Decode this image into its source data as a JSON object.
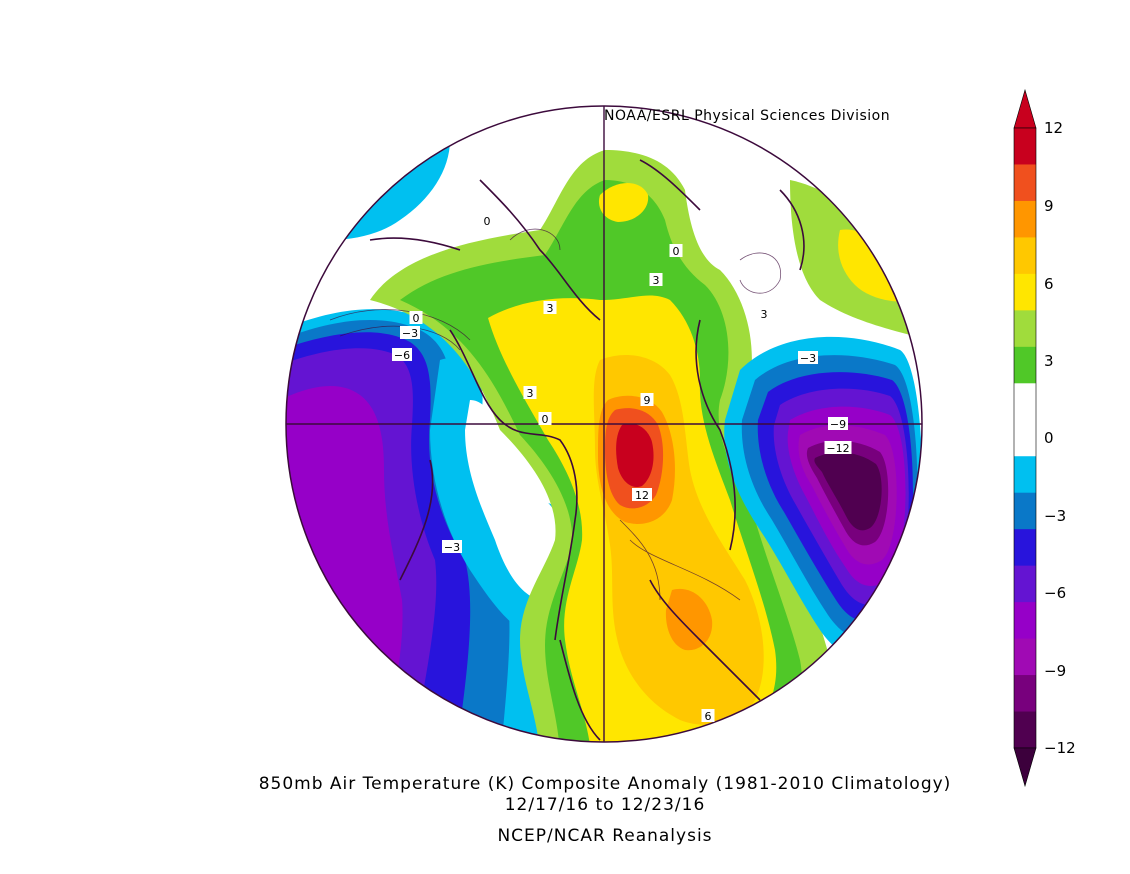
{
  "credit": "NOAA/ESRL Physical Sciences Division",
  "caption": {
    "line1": "850mb Air Temperature (K) Composite Anomaly (1981-2010 Climatology)",
    "line2": "12/17/16  to 12/23/16",
    "line3": "NCEP/NCAR Reanalysis"
  },
  "colorbar": {
    "ticks": [
      "12",
      "9",
      "6",
      "3",
      "0",
      "-3",
      "-6",
      "-9",
      "-12"
    ],
    "colors": [
      "#c8001e",
      "#f0501e",
      "#ff9600",
      "#ffc800",
      "#ffe600",
      "#a0dc3c",
      "#50c828",
      "#ffffff",
      "#ffffff",
      "#00c0f0",
      "#0a78c8",
      "#2814dc",
      "#6414d2",
      "#9600c8",
      "#a00ab4",
      "#78007d",
      "#500050"
    ],
    "top_arrow_color": "#c8001e",
    "bottom_arrow_color": "#3c003c"
  },
  "contour_labels": [
    "0",
    "3",
    "3",
    "0",
    "0",
    "-3",
    "-6",
    "3",
    "3",
    "0",
    "9",
    "12",
    "-3",
    "-9",
    "-12",
    "-3",
    "6"
  ],
  "map_colors": {
    "boundary": "#3c0a3c",
    "white": "#ffffff",
    "lightgreen": "#a0dc3c",
    "green": "#50c828",
    "yellow": "#ffe600",
    "gold": "#ffc800",
    "orange": "#ff9600",
    "redorange": "#f0501e",
    "red": "#c8001e",
    "cyan": "#00c0f0",
    "blue": "#0a78c8",
    "indigo": "#2814dc",
    "violet": "#6414d2",
    "purple": "#9600c8",
    "magenta": "#a00ab4",
    "plum": "#78007d",
    "darkplum": "#500050"
  }
}
